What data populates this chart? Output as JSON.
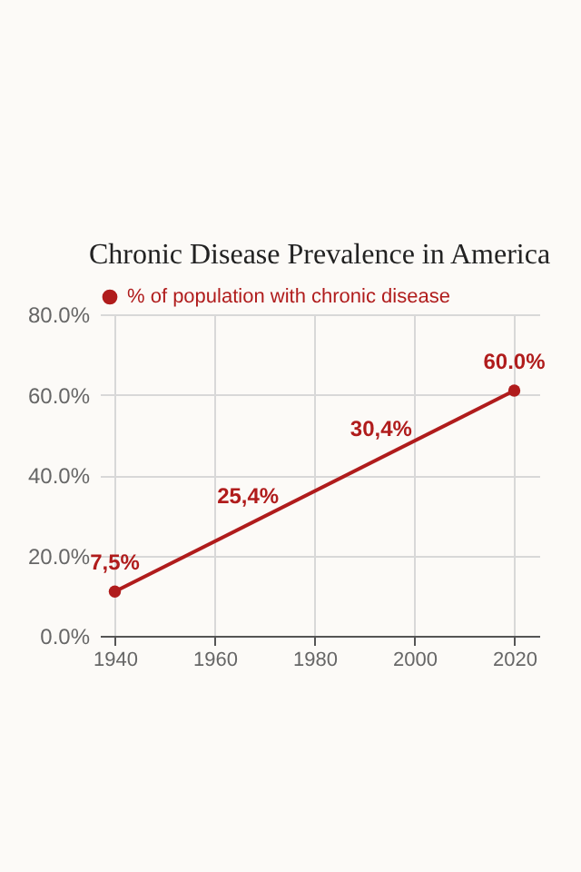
{
  "chart_data": {
    "type": "line",
    "title": "Chronic Disease Prevalence in America",
    "x": [
      1940,
      2020
    ],
    "series": [
      {
        "name": "% of population with chronic disease",
        "color": "#b01c1c",
        "values": [
          11,
          61
        ]
      }
    ],
    "xlim": [
      1937,
      2025
    ],
    "xticks": [
      1940,
      1960,
      1980,
      2000,
      2020
    ],
    "ylim": [
      0,
      80
    ],
    "yticks": [
      {
        "value": 0,
        "label": "0.0%"
      },
      {
        "value": 20,
        "label": "20.0%"
      },
      {
        "value": 40,
        "label": "40.0%"
      },
      {
        "value": 60,
        "label": "60.0%"
      },
      {
        "value": 80,
        "label": "80.0%"
      }
    ],
    "annotations": [
      "7,5%",
      "25,4%",
      "30,4%",
      "60.0%"
    ],
    "grid": true,
    "legend": "top",
    "marker": "circle",
    "line_style": "solid"
  }
}
